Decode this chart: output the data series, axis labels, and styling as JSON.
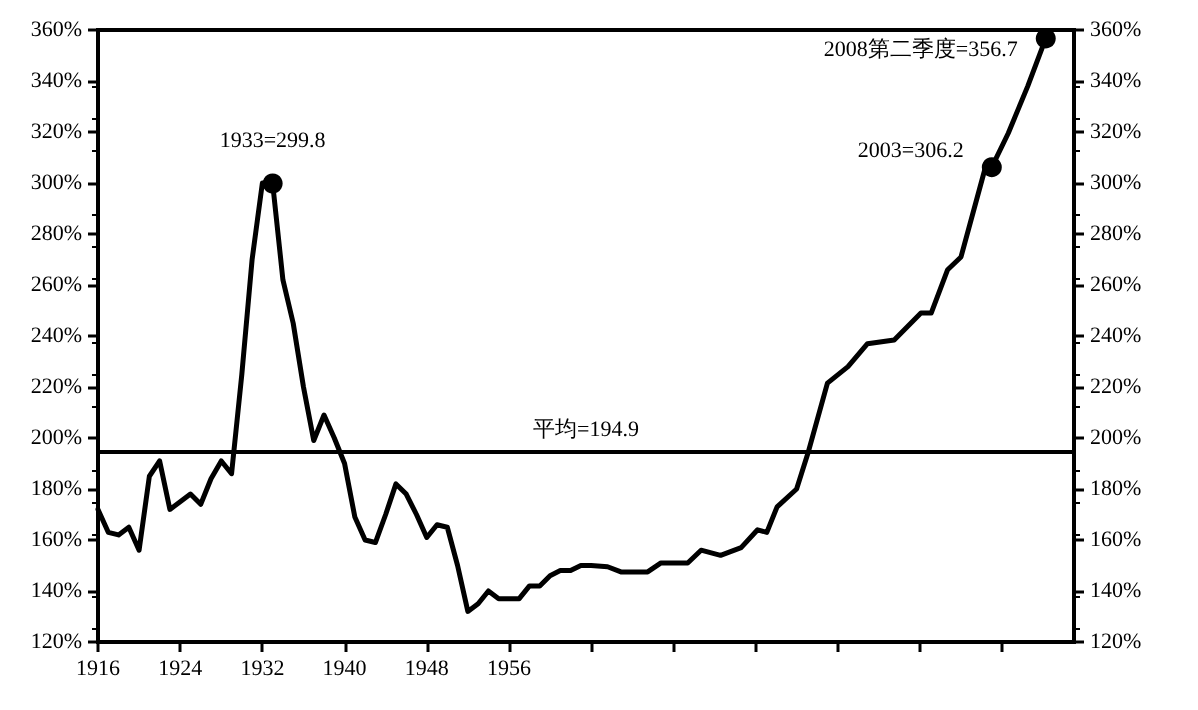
{
  "chart_data": {
    "type": "line",
    "x": [
      1916,
      1917,
      1918,
      1919,
      1920,
      1921,
      1922,
      1923,
      1924,
      1925,
      1926,
      1927,
      1928,
      1929,
      1930,
      1931,
      1932,
      1933,
      1934,
      1935,
      1936,
      1937,
      1938,
      1939,
      1940,
      1941,
      1942,
      1943,
      1944,
      1945,
      1946,
      1947,
      1948,
      1949,
      1950,
      1951,
      1952,
      1953,
      1954,
      1955,
      1956,
      1957,
      1958,
      1959,
      1960,
      1961,
      1962,
      1963,
      1964,
      1965.6,
      1966.9,
      1969.5,
      1970.8,
      1973.4,
      1974.7,
      1976.6,
      1978.6,
      1980.2,
      1981.1,
      1982.1,
      1984,
      1985.1,
      1987,
      1989,
      1990.9,
      1993.5,
      1996.1,
      1997.1,
      1998.7,
      2000,
      2002.3,
      2003,
      2004.6,
      2006.5,
      2008.25
    ],
    "series": [
      {
        "color": "#000000",
        "values": [
          172,
          163,
          162,
          165,
          156,
          185,
          191,
          172,
          175,
          178,
          174,
          184,
          191,
          186,
          225,
          270,
          300,
          299.8,
          262,
          245,
          220,
          199,
          209,
          200,
          190,
          169,
          160,
          159,
          170,
          182,
          178,
          170,
          161,
          166,
          165,
          150,
          132,
          135,
          140,
          137,
          137,
          137,
          142,
          142,
          146,
          148,
          148,
          150,
          150,
          149.5,
          147.5,
          147.5,
          151,
          151,
          156,
          154,
          157,
          164,
          163,
          173,
          180,
          194,
          221.5,
          228,
          237,
          238.4,
          249,
          249,
          266,
          271,
          305,
          306.2,
          319.5,
          338,
          356.7
        ]
      }
    ],
    "xlim": [
      1916,
      2011
    ],
    "xticks": [
      1916,
      1924,
      1932,
      1940,
      1948,
      1956,
      {
        "value": 1964,
        "label": null
      },
      {
        "value": 1972,
        "label": null
      },
      {
        "value": 1980,
        "label": null
      },
      {
        "value": 1988,
        "label": null
      },
      {
        "value": 1996,
        "label": null
      },
      {
        "value": 2004,
        "label": null
      }
    ],
    "ylim": [
      120,
      360
    ],
    "yticks": [
      {
        "value": 120,
        "label": "120%"
      },
      {
        "value": 140,
        "label": "140%"
      },
      {
        "value": 160,
        "label": "160%"
      },
      {
        "value": 180,
        "label": "180%"
      },
      {
        "value": 200,
        "label": "200%"
      },
      {
        "value": 220,
        "label": "220%"
      },
      {
        "value": 240,
        "label": "240%"
      },
      {
        "value": 260,
        "label": "260%"
      },
      {
        "value": 280,
        "label": "280%"
      },
      {
        "value": 300,
        "label": "300%"
      },
      {
        "value": 320,
        "label": "320%"
      },
      {
        "value": 340,
        "label": "340%"
      },
      {
        "value": 360,
        "label": "360%"
      }
    ],
    "y2lim": [
      120,
      360
    ],
    "y2ticks": [
      {
        "value": 120,
        "label": "120%"
      },
      {
        "value": 140,
        "label": "140%"
      },
      {
        "value": 160,
        "label": "160%"
      },
      {
        "value": 180,
        "label": "180%"
      },
      {
        "value": 200,
        "label": "200%"
      },
      {
        "value": 220,
        "label": "220%"
      },
      {
        "value": 240,
        "label": "240%"
      },
      {
        "value": 260,
        "label": "260%"
      },
      {
        "value": 280,
        "label": "280%"
      },
      {
        "value": 300,
        "label": "300%"
      },
      {
        "value": 320,
        "label": "320%"
      },
      {
        "value": 340,
        "label": "340%"
      },
      {
        "value": 360,
        "label": "360%"
      }
    ],
    "ref_lines": [
      {
        "axis": "y",
        "value": 194.9,
        "label": "平均=194.9",
        "color": "#000000"
      }
    ],
    "annotations": [
      {
        "text": "1933=299.8",
        "x": 1933,
        "y": 299.8
      },
      {
        "text": "2003=306.2",
        "x": 2003,
        "y": 306.2
      },
      {
        "text": "2008第二季度=356.7",
        "x": 2008.25,
        "y": 356.7
      }
    ],
    "grid": false,
    "marker": "none",
    "line_style": "solid"
  }
}
